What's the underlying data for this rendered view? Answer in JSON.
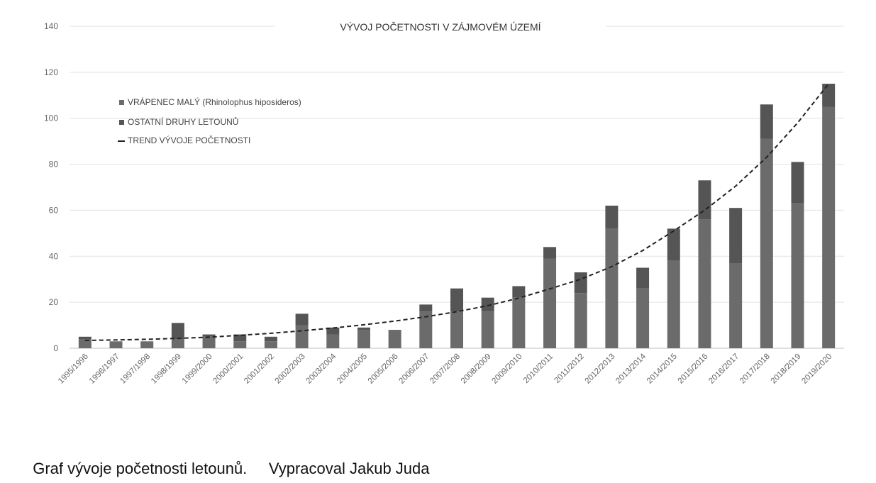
{
  "chart_data": {
    "type": "bar",
    "stacked": true,
    "title": "VÝVOJ POČETNOSTI V ZÁJMOVÉM ÚZEMÍ",
    "xlabel": "",
    "ylabel": "",
    "ylim": [
      0,
      140
    ],
    "yticks": [
      0,
      20,
      40,
      60,
      80,
      100,
      120,
      140
    ],
    "grid": true,
    "legend_position": "top-left",
    "categories": [
      "1995/1996",
      "1996/1997",
      "1997/1998",
      "1998/1999",
      "1999/2000",
      "2000/2001",
      "2001/2002",
      "2002/2003",
      "2003/2004",
      "2004/2005",
      "2005/2006",
      "2006/2007",
      "2007/2008",
      "2008/2009",
      "2009/2010",
      "2010/2011",
      "2011/2012",
      "2012/2013",
      "2013/2014",
      "2014/2015",
      "2015/2016",
      "2016/2017",
      "2017/2018",
      "2018/2019",
      "2019/2020"
    ],
    "series": [
      {
        "name": "VRÁPENEC MALÝ (Rhinolophus hiposideros)",
        "color": "#6b6b6b",
        "values": [
          4,
          3,
          3,
          4,
          5,
          3,
          3,
          10,
          6,
          8,
          8,
          16,
          16,
          16,
          22,
          39,
          24,
          52,
          26,
          38,
          56,
          37,
          91,
          63,
          105
        ]
      },
      {
        "name": "OSTATNÍ DRUHY LETOUNŮ",
        "color": "#555555",
        "values": [
          1,
          0,
          0,
          7,
          1,
          3,
          2,
          5,
          3,
          1,
          0,
          3,
          10,
          6,
          5,
          5,
          9,
          10,
          9,
          14,
          17,
          24,
          15,
          18,
          10
        ]
      }
    ],
    "trend": {
      "name": "TREND VÝVOJE POČETNOSTI",
      "style": "dashed",
      "color": "#222222",
      "values": [
        3.4,
        3.6,
        3.9,
        4.3,
        4.8,
        5.6,
        6.5,
        7.6,
        8.8,
        10.2,
        11.8,
        13.7,
        15.9,
        18.5,
        21.8,
        25.8,
        30.0,
        35.5,
        42.5,
        51.0,
        60.0,
        70.5,
        83.0,
        98.0,
        115.0
      ]
    }
  },
  "caption": {
    "left": "Graf vývoje početnosti letounů.",
    "right": "Vypracoval Jakub Juda"
  }
}
